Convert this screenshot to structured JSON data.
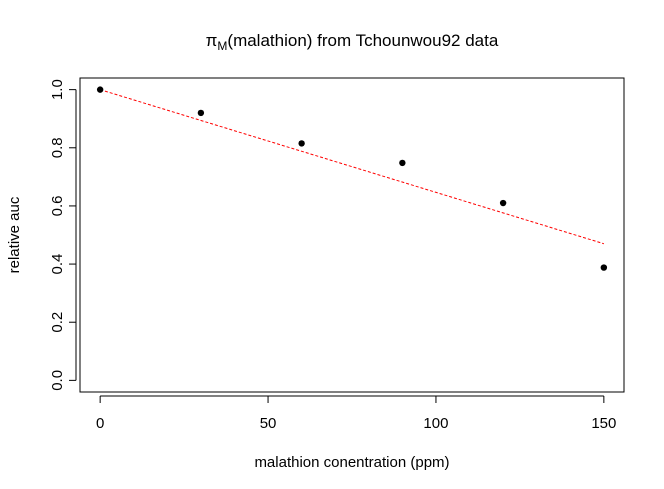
{
  "chart_data": {
    "type": "scatter",
    "title": {
      "symbol": "π",
      "subscript": "M",
      "text": "(malathion) from Tchounwou92 data"
    },
    "xlabel": "malathion conentration (ppm)",
    "ylabel": "relative auc",
    "xlim": [
      -6,
      156
    ],
    "ylim": [
      -0.04,
      1.04
    ],
    "xticks": [
      0,
      50,
      100,
      150
    ],
    "yticks": [
      0.0,
      0.2,
      0.4,
      0.6,
      0.8,
      1.0
    ],
    "xtick_labels": [
      "0",
      "50",
      "100",
      "150"
    ],
    "ytick_labels": [
      "0.0",
      "0.2",
      "0.4",
      "0.6",
      "0.8",
      "1.0"
    ],
    "grid": false,
    "series": [
      {
        "kind": "points",
        "x": [
          0,
          30,
          60,
          90,
          120,
          150
        ],
        "y": [
          1.0,
          0.92,
          0.815,
          0.748,
          0.61,
          0.388
        ],
        "color": "#000000"
      },
      {
        "kind": "fit-line",
        "x": [
          0,
          150
        ],
        "y": [
          1.0,
          0.47
        ],
        "color": "#ff0000",
        "style": "dashed"
      }
    ]
  }
}
